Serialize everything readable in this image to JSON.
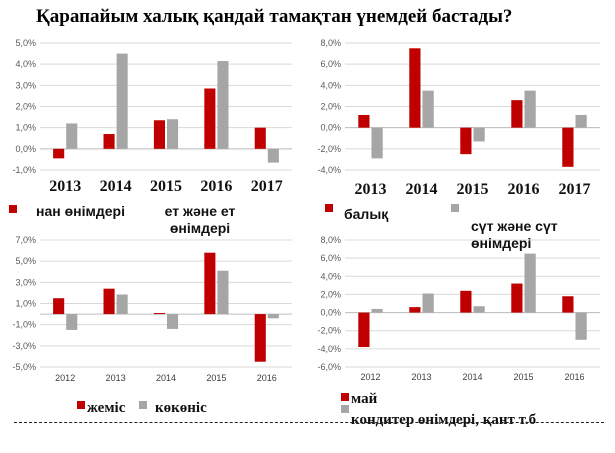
{
  "title": "Қарапайым халық қандай тамақтан үнемдей бастады?",
  "colors": {
    "series1": "#c00000",
    "series2": "#a6a6a6"
  },
  "chart_data": [
    {
      "type": "bar",
      "categories": [
        "2013",
        "2014",
        "2015",
        "2016",
        "2017"
      ],
      "ylim": [
        -1,
        5
      ],
      "yticks": [
        "5,0%",
        "4,0%",
        "3,0%",
        "2,0%",
        "1,0%",
        "0,0%",
        "-1,0%"
      ],
      "grid": true,
      "legend": "bottom",
      "series": [
        {
          "name": "нан өнімдері",
          "values": [
            -0.45,
            0.7,
            1.35,
            2.85,
            1.0
          ]
        },
        {
          "name": "ет және ет өнімдері",
          "values": [
            1.2,
            4.5,
            1.4,
            4.15,
            -0.65
          ]
        }
      ]
    },
    {
      "type": "bar",
      "categories": [
        "2013",
        "2014",
        "2015",
        "2016",
        "2017"
      ],
      "ylim": [
        -4,
        8
      ],
      "yticks": [
        "8,0%",
        "6,0%",
        "4,0%",
        "2,0%",
        "0,0%",
        "-2,0%",
        "-4,0%"
      ],
      "grid": true,
      "legend": "bottom",
      "series": [
        {
          "name": "балық",
          "values": [
            1.2,
            7.5,
            -2.5,
            2.6,
            -3.7
          ]
        },
        {
          "name": "сүт және сүт өнімдері",
          "values": [
            -2.9,
            3.5,
            -1.3,
            3.5,
            1.2
          ]
        }
      ]
    },
    {
      "type": "bar",
      "categories": [
        "2012",
        "2013",
        "2014",
        "2015",
        "2016"
      ],
      "ylim": [
        -5,
        7
      ],
      "yticks": [
        "7,0%",
        "5,0%",
        "3,0%",
        "1,0%",
        "-1,0%",
        "-3,0%",
        "-5,0%"
      ],
      "grid": true,
      "legend": "bottom",
      "series": [
        {
          "name": "жеміс",
          "values": [
            1.5,
            2.4,
            0.1,
            5.8,
            -4.5
          ]
        },
        {
          "name": "көкөніс",
          "values": [
            -1.5,
            1.85,
            -1.4,
            4.1,
            -0.4
          ]
        }
      ]
    },
    {
      "type": "bar",
      "categories": [
        "2012",
        "2013",
        "2014",
        "2015",
        "2016"
      ],
      "ylim": [
        -6,
        8
      ],
      "yticks": [
        "8,0%",
        "6,0%",
        "4,0%",
        "2,0%",
        "0,0%",
        "-2,0%",
        "-4,0%",
        "-6,0%"
      ],
      "grid": true,
      "legend": "bottom",
      "series": [
        {
          "name": "май",
          "values": [
            -3.8,
            0.6,
            2.4,
            3.2,
            1.8
          ]
        },
        {
          "name": "кондитер өнімдері, қант т.б",
          "values": [
            0.4,
            2.1,
            0.7,
            6.5,
            -3.0
          ]
        }
      ]
    }
  ]
}
